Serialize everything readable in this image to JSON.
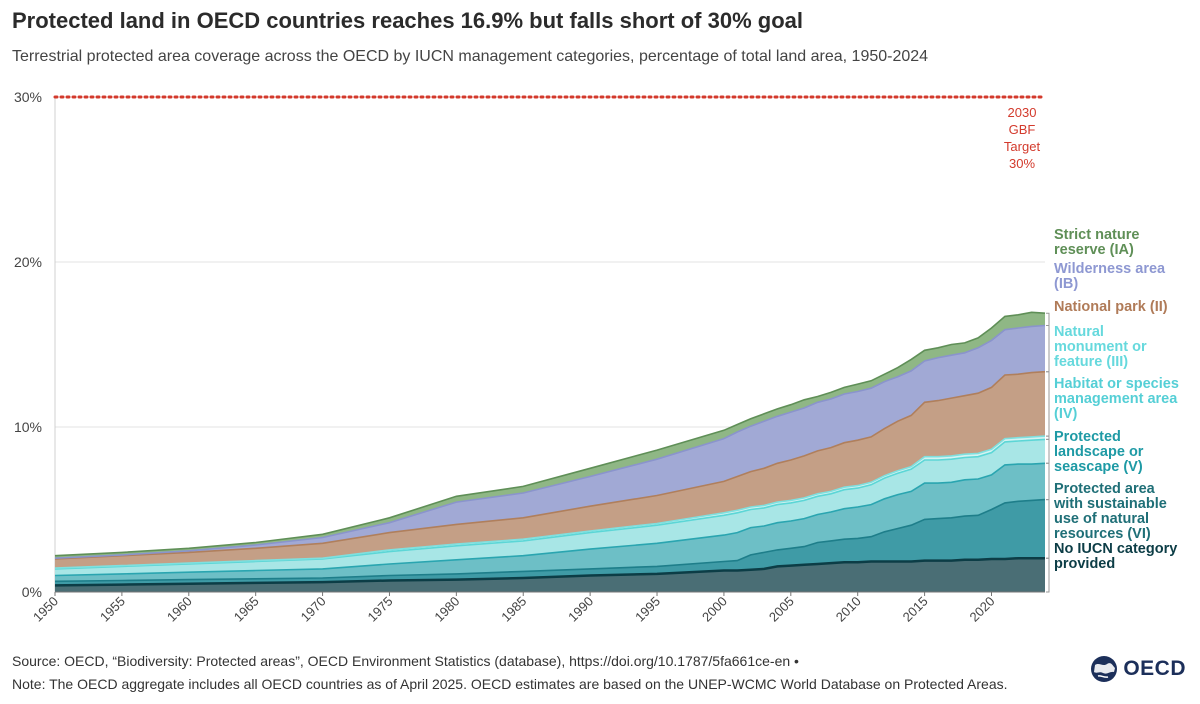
{
  "title": "Protected land in OECD countries reaches 16.9% but falls short of 30% goal",
  "subtitle": "Terrestrial protected area coverage across the OECD by IUCN management categories, percentage of total land area, 1950-2024",
  "footer": {
    "source": "Source: OECD, “Biodiversity: Protected areas”, OECD Environment Statistics (database), https://doi.org/10.1787/5fa661ce-en •",
    "note": "Note: The OECD aggregate includes all OECD countries as of April 2025. OECD estimates are based on the UNEP-WCMC World Database on Protected Areas."
  },
  "logo": {
    "text": "OECD",
    "icon": "globe-icon"
  },
  "chart_data": {
    "type": "area",
    "stacked": true,
    "x": [
      1950,
      1955,
      1960,
      1965,
      1970,
      1975,
      1980,
      1985,
      1990,
      1995,
      2000,
      2001,
      2002,
      2003,
      2004,
      2005,
      2006,
      2007,
      2008,
      2009,
      2010,
      2011,
      2012,
      2013,
      2014,
      2015,
      2016,
      2017,
      2018,
      2019,
      2020,
      2021,
      2022,
      2023,
      2024
    ],
    "xticks": [
      "1950",
      "1955",
      "1960",
      "1965",
      "1970",
      "1975",
      "1980",
      "1985",
      "1990",
      "1995",
      "2000",
      "2005",
      "2010",
      "2015",
      "2020"
    ],
    "ylim": [
      0,
      30
    ],
    "yticks": [
      {
        "value": 0,
        "label": "0%"
      },
      {
        "value": 10,
        "label": "10%"
      },
      {
        "value": 20,
        "label": "20%"
      },
      {
        "value": 30,
        "label": "30%"
      }
    ],
    "target": {
      "value": 30,
      "label_lines": [
        "2030",
        "GBF",
        "Target",
        "30%"
      ],
      "color": "#d33a2c"
    },
    "totals": [
      2.2,
      2.4,
      2.65,
      3.0,
      3.5,
      4.7,
      5.8,
      6.4,
      7.5,
      8.6,
      9.8,
      10.2,
      10.5,
      10.8,
      11.1,
      11.3,
      11.6,
      11.8,
      12.1,
      12.4,
      12.6,
      12.8,
      13.2,
      13.6,
      14.1,
      14.7,
      14.9,
      15.0,
      15.2,
      15.6,
      16.2,
      16.7,
      16.8,
      16.85,
      16.9
    ],
    "series": [
      {
        "name": "No IUCN category provided",
        "label_lines": [
          "No IUCN category",
          "provided"
        ],
        "color": "#4a6e75",
        "stroke": "#0c3d46",
        "label_color": "#0c3d46",
        "values": [
          0.4,
          0.45,
          0.5,
          0.55,
          0.6,
          0.7,
          0.75,
          0.85,
          1.0,
          1.1,
          1.3,
          1.3,
          1.35,
          1.4,
          1.55,
          1.6,
          1.65,
          1.7,
          1.75,
          1.8,
          1.8,
          1.85,
          1.85,
          1.85,
          1.85,
          1.9,
          1.9,
          1.9,
          1.95,
          1.95,
          2.0,
          2.0,
          2.05,
          2.05,
          2.05
        ]
      },
      {
        "name": "Protected area with sustainable use of natural resources (VI)",
        "label_lines": [
          "Protected area",
          "with sustainable",
          "use of natural",
          "resources (VI)"
        ],
        "color": "#3f9ba6",
        "stroke": "#1e7e8a",
        "label_color": "#1f6f77",
        "values": [
          0.25,
          0.25,
          0.25,
          0.25,
          0.25,
          0.3,
          0.35,
          0.4,
          0.4,
          0.45,
          0.55,
          0.6,
          0.9,
          1.0,
          1.0,
          1.05,
          1.1,
          1.3,
          1.35,
          1.4,
          1.45,
          1.5,
          1.8,
          2.0,
          2.2,
          2.5,
          2.55,
          2.6,
          2.65,
          2.7,
          3.0,
          3.4,
          3.45,
          3.5,
          3.55
        ]
      },
      {
        "name": "Protected landscape or seascape (V)",
        "label_lines": [
          "Protected",
          "landscape or",
          "seascape (V)"
        ],
        "color": "#6dbfc6",
        "stroke": "#2aa5b0",
        "label_color": "#1e9aa5",
        "values": [
          0.35,
          0.4,
          0.45,
          0.5,
          0.55,
          0.7,
          0.85,
          0.95,
          1.2,
          1.4,
          1.6,
          1.7,
          1.65,
          1.6,
          1.65,
          1.65,
          1.7,
          1.7,
          1.75,
          1.85,
          1.9,
          1.95,
          2.0,
          2.05,
          2.05,
          2.2,
          2.15,
          2.15,
          2.2,
          2.2,
          2.1,
          2.3,
          2.25,
          2.2,
          2.2
        ]
      },
      {
        "name": "Habitat or species management area (IV)",
        "label_lines": [
          "Habitat or species",
          "management area",
          "(IV)"
        ],
        "color": "#a8e6e6",
        "stroke": "#5cd6d6",
        "label_color": "#55cfd6",
        "values": [
          0.4,
          0.45,
          0.5,
          0.55,
          0.6,
          0.75,
          0.85,
          0.9,
          1.0,
          1.1,
          1.2,
          1.2,
          1.1,
          1.1,
          1.1,
          1.1,
          1.1,
          1.1,
          1.1,
          1.15,
          1.15,
          1.2,
          1.25,
          1.3,
          1.35,
          1.4,
          1.4,
          1.4,
          1.35,
          1.35,
          1.35,
          1.4,
          1.4,
          1.45,
          1.45
        ]
      },
      {
        "name": "Natural monument or feature (III)",
        "label_lines": [
          "Natural",
          "monument or",
          "feature (III)"
        ],
        "color": "#d4f3f2",
        "stroke": "#7fe0df",
        "label_color": "#66d9dd",
        "values": [
          0.05,
          0.05,
          0.05,
          0.05,
          0.05,
          0.1,
          0.1,
          0.1,
          0.1,
          0.1,
          0.15,
          0.15,
          0.15,
          0.15,
          0.15,
          0.15,
          0.15,
          0.15,
          0.15,
          0.15,
          0.15,
          0.15,
          0.15,
          0.15,
          0.15,
          0.2,
          0.2,
          0.2,
          0.2,
          0.2,
          0.2,
          0.2,
          0.2,
          0.2,
          0.2
        ]
      },
      {
        "name": "National park (II)",
        "label_lines": [
          "National park (II)"
        ],
        "color": "#c49f86",
        "stroke": "#b07f5c",
        "label_color": "#b07b58",
        "values": [
          0.55,
          0.6,
          0.65,
          0.75,
          0.9,
          1.05,
          1.2,
          1.3,
          1.5,
          1.7,
          1.9,
          2.05,
          2.15,
          2.25,
          2.35,
          2.45,
          2.55,
          2.6,
          2.65,
          2.7,
          2.75,
          2.75,
          2.85,
          3.0,
          3.1,
          3.3,
          3.4,
          3.5,
          3.55,
          3.65,
          3.75,
          3.85,
          3.85,
          3.9,
          3.9
        ]
      },
      {
        "name": "Wilderness area (IB)",
        "label_lines": [
          "Wilderness area",
          "(IB)"
        ],
        "color": "#a1a9d5",
        "stroke": "#8a94cc",
        "label_color": "#8e98d2",
        "values": [
          0.05,
          0.05,
          0.1,
          0.2,
          0.35,
          0.6,
          1.35,
          1.5,
          1.8,
          2.2,
          2.6,
          2.7,
          2.75,
          2.85,
          2.85,
          2.9,
          2.9,
          2.95,
          2.95,
          2.95,
          2.95,
          2.95,
          2.85,
          2.7,
          2.7,
          2.5,
          2.6,
          2.6,
          2.6,
          2.75,
          2.85,
          2.75,
          2.8,
          2.8,
          2.8
        ]
      },
      {
        "name": "Strict nature reserve (IA)",
        "label_lines": [
          "Strict nature",
          "reserve (IA)"
        ],
        "color": "#8fb785",
        "stroke": "#5f8f57",
        "label_color": "#5f8f57",
        "values": [
          0.15,
          0.15,
          0.15,
          0.15,
          0.2,
          0.3,
          0.35,
          0.4,
          0.5,
          0.55,
          0.5,
          0.45,
          0.45,
          0.45,
          0.45,
          0.45,
          0.5,
          0.35,
          0.4,
          0.4,
          0.45,
          0.45,
          0.45,
          0.55,
          0.7,
          0.65,
          0.6,
          0.65,
          0.6,
          0.6,
          0.75,
          0.8,
          0.8,
          0.85,
          0.75
        ]
      }
    ]
  }
}
